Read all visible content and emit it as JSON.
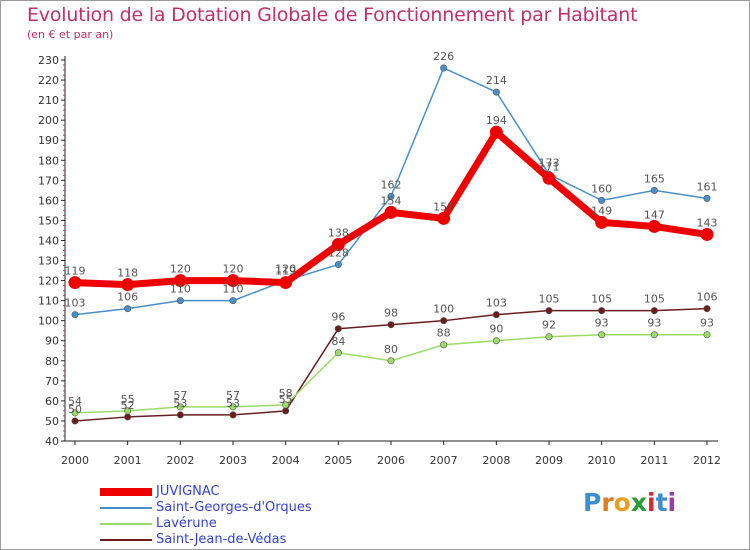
{
  "chart_data": {
    "type": "line",
    "title": "Evolution de la Dotation Globale de Fonctionnement par Habitant",
    "subtitle": "(en € et par an)",
    "xlabel": "",
    "ylabel": "",
    "ylim": [
      40,
      230
    ],
    "ytick_step": 10,
    "grid": false,
    "legend_position": "bottom-left",
    "categories": [
      "2000",
      "2001",
      "2002",
      "2003",
      "2004",
      "2005",
      "2006",
      "2007",
      "2008",
      "2009",
      "2010",
      "2011",
      "2012"
    ],
    "series": [
      {
        "name": "JUVIGNAC",
        "color": "#ee0000",
        "values": [
          119,
          118,
          120,
          120,
          119,
          138,
          154,
          151,
          194,
          171,
          149,
          147,
          143
        ],
        "labels": [
          "119",
          "118",
          "120",
          "120",
          "119",
          "138",
          "154",
          "151",
          "194",
          "171",
          "149",
          "147",
          "143"
        ]
      },
      {
        "name": "Saint-Georges-d'Orques",
        "color": "#4a8fcc",
        "values": [
          103,
          106,
          110,
          110,
          120,
          128,
          162,
          226,
          214,
          173,
          160,
          165,
          161
        ],
        "labels": [
          "103",
          "106",
          "110",
          "110",
          "120",
          "128",
          "162",
          "226",
          "214",
          "173",
          "160",
          "165",
          "161"
        ]
      },
      {
        "name": "Lavérune",
        "color": "#99dd66",
        "values": [
          54,
          55,
          57,
          57,
          58,
          84,
          80,
          88,
          90,
          92,
          93,
          93,
          93
        ],
        "labels": [
          "54",
          "55",
          "57",
          "57",
          "58",
          "84",
          "80",
          "88",
          "90",
          "92",
          "93",
          "93",
          "93"
        ]
      },
      {
        "name": "Saint-Jean-de-Védas",
        "color": "#6b1d1d",
        "values": [
          50,
          52,
          53,
          53,
          55,
          96,
          98,
          100,
          103,
          105,
          105,
          105,
          106
        ],
        "labels": [
          "50",
          "52",
          "53",
          "53",
          "55",
          "96",
          "98",
          "100",
          "103",
          "105",
          "105",
          "105",
          "106"
        ]
      }
    ]
  },
  "logo": {
    "letters": [
      "P",
      "r",
      "o",
      "x",
      "i",
      "t",
      "i"
    ],
    "colors": [
      "#3a8fd0",
      "#e07a1a",
      "#e8a020",
      "#2a9a3a",
      "#d02a2a",
      "#3a8fd0",
      "#9a3ab0"
    ]
  }
}
